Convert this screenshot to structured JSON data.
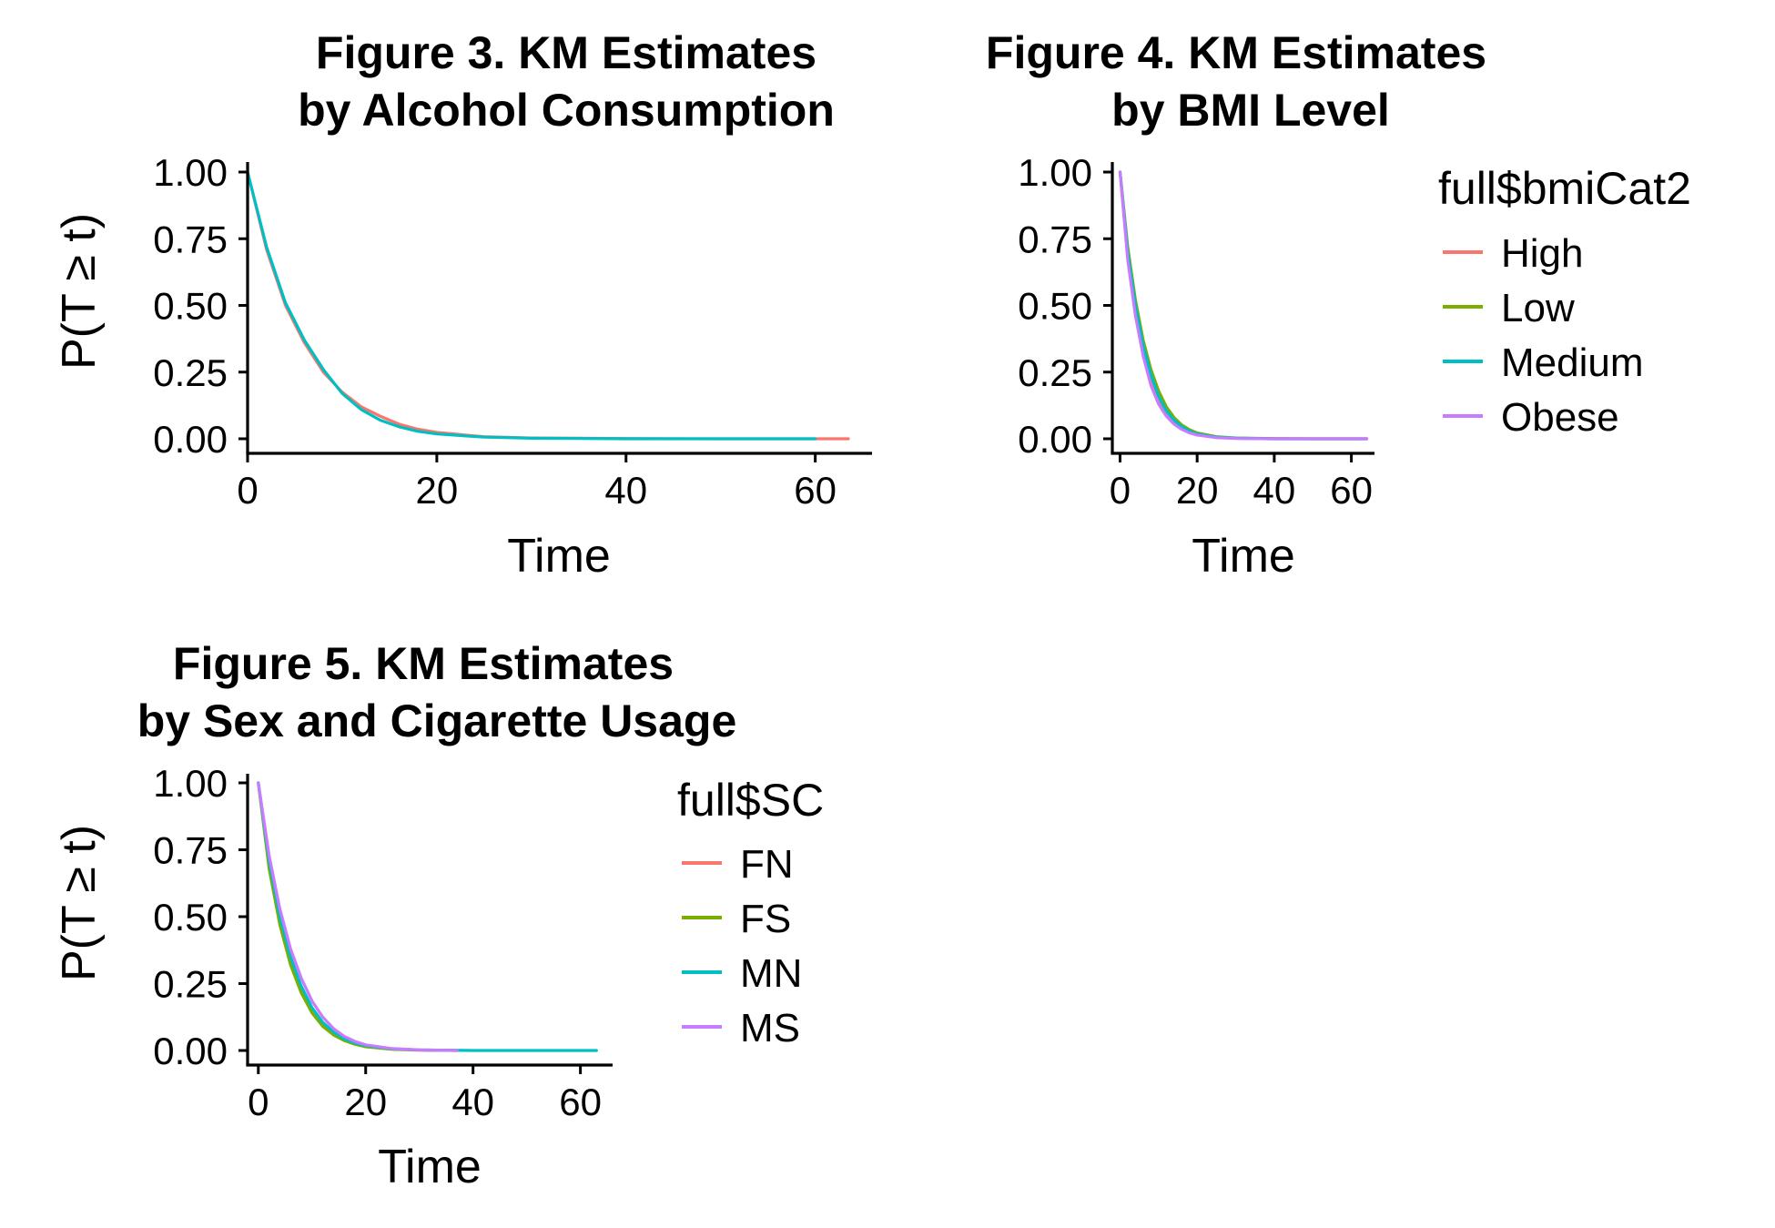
{
  "chart_data": [
    {
      "type": "line",
      "title_line1": "Figure 3. KM Estimates",
      "title_line2": "by Alcohol Consumption",
      "xlabel": "Time",
      "ylabel": "P(T ≥ t)",
      "xlim": [
        0,
        66
      ],
      "ylim": [
        0,
        1
      ],
      "xticks": [
        "0",
        "20",
        "40",
        "60"
      ],
      "xtick_values": [
        0,
        20,
        40,
        60
      ],
      "yticks": [
        "0.00",
        "0.25",
        "0.50",
        "0.75",
        "1.00"
      ],
      "ytick_values": [
        0,
        0.25,
        0.5,
        0.75,
        1.0
      ],
      "legend_title": "",
      "series": [
        {
          "color": "#F8766D",
          "x": [
            0,
            2,
            4,
            6,
            8,
            10,
            12,
            14,
            16,
            18,
            20,
            25,
            30,
            40,
            50,
            60,
            63.5
          ],
          "y": [
            1.0,
            0.71,
            0.5,
            0.36,
            0.25,
            0.175,
            0.12,
            0.085,
            0.055,
            0.036,
            0.024,
            0.008,
            0.003,
            0.001,
            0.0,
            0.0,
            0.0
          ]
        },
        {
          "color": "#00BFC4",
          "x": [
            0,
            2,
            4,
            6,
            8,
            10,
            12,
            14,
            16,
            18,
            20,
            25,
            30,
            40,
            50,
            60
          ],
          "y": [
            1.0,
            0.72,
            0.51,
            0.37,
            0.26,
            0.17,
            0.11,
            0.07,
            0.045,
            0.028,
            0.018,
            0.006,
            0.002,
            0.0,
            0.0,
            0.0
          ]
        }
      ]
    },
    {
      "type": "line",
      "title_line1": "Figure 4. KM Estimates",
      "title_line2": "by BMI Level",
      "xlabel": "Time",
      "ylabel": "",
      "xlim": [
        -2,
        66
      ],
      "ylim": [
        0,
        1
      ],
      "xticks": [
        "0",
        "20",
        "40",
        "60"
      ],
      "xtick_values": [
        0,
        20,
        40,
        60
      ],
      "yticks": [
        "0.00",
        "0.25",
        "0.50",
        "0.75",
        "1.00"
      ],
      "ytick_values": [
        0,
        0.25,
        0.5,
        0.75,
        1.0
      ],
      "legend_title": "full$bmiCat2",
      "series": [
        {
          "name": "High",
          "color": "#F8766D",
          "x": [
            0,
            2,
            4,
            6,
            8,
            10,
            12,
            14,
            16,
            18,
            20,
            25,
            30,
            40,
            50,
            60,
            64
          ],
          "y": [
            1.0,
            0.69,
            0.48,
            0.33,
            0.22,
            0.145,
            0.095,
            0.062,
            0.04,
            0.026,
            0.016,
            0.005,
            0.002,
            0.0,
            0.0,
            0.0,
            0.0
          ]
        },
        {
          "name": "Low",
          "color": "#7CAE00",
          "x": [
            0,
            2,
            4,
            6,
            8,
            10,
            12,
            14,
            16,
            18,
            20,
            25,
            30,
            40,
            50,
            60,
            64
          ],
          "y": [
            1.0,
            0.72,
            0.52,
            0.37,
            0.26,
            0.18,
            0.12,
            0.08,
            0.052,
            0.034,
            0.022,
            0.008,
            0.003,
            0.001,
            0.0,
            0.0,
            0.0
          ]
        },
        {
          "name": "Medium",
          "color": "#00BFC4",
          "x": [
            0,
            2,
            4,
            6,
            8,
            10,
            12,
            14,
            16,
            18,
            20,
            25,
            30,
            40,
            50,
            60,
            64
          ],
          "y": [
            1.0,
            0.7,
            0.5,
            0.35,
            0.24,
            0.16,
            0.105,
            0.07,
            0.045,
            0.029,
            0.018,
            0.006,
            0.002,
            0.0,
            0.0,
            0.0,
            0.0
          ]
        },
        {
          "name": "Obese",
          "color": "#C77CFF",
          "x": [
            0,
            2,
            4,
            6,
            8,
            10,
            12,
            14,
            16,
            18,
            20,
            25,
            30,
            40,
            50,
            60,
            64
          ],
          "y": [
            1.0,
            0.67,
            0.46,
            0.31,
            0.2,
            0.13,
            0.085,
            0.055,
            0.035,
            0.022,
            0.014,
            0.004,
            0.001,
            0.0,
            0.0,
            0.0,
            0.0
          ]
        }
      ]
    },
    {
      "type": "line",
      "title_line1": "Figure 5. KM Estimates",
      "title_line2": "by Sex and Cigarette Usage",
      "xlabel": "Time",
      "ylabel": "P(T ≥ t)",
      "xlim": [
        -2,
        66
      ],
      "ylim": [
        0,
        1
      ],
      "xticks": [
        "0",
        "20",
        "40",
        "60"
      ],
      "xtick_values": [
        0,
        20,
        40,
        60
      ],
      "yticks": [
        "0.00",
        "0.25",
        "0.50",
        "0.75",
        "1.00"
      ],
      "ytick_values": [
        0,
        0.25,
        0.5,
        0.75,
        1.0
      ],
      "legend_title": "full$SC",
      "series": [
        {
          "name": "FN",
          "color": "#F8766D",
          "x": [
            0,
            2,
            4,
            6,
            8,
            10,
            12,
            14,
            16,
            18,
            20,
            25,
            30,
            37
          ],
          "y": [
            1.0,
            0.7,
            0.49,
            0.34,
            0.23,
            0.155,
            0.1,
            0.066,
            0.042,
            0.027,
            0.017,
            0.006,
            0.002,
            0.0
          ]
        },
        {
          "name": "FS",
          "color": "#7CAE00",
          "x": [
            0,
            2,
            4,
            6,
            8,
            10,
            12,
            14,
            16,
            18,
            20,
            25,
            30,
            37
          ],
          "y": [
            1.0,
            0.68,
            0.47,
            0.32,
            0.215,
            0.14,
            0.09,
            0.058,
            0.037,
            0.023,
            0.014,
            0.004,
            0.001,
            0.0
          ]
        },
        {
          "name": "MN",
          "color": "#00BFC4",
          "x": [
            0,
            2,
            4,
            6,
            8,
            10,
            12,
            14,
            16,
            18,
            20,
            25,
            30,
            40,
            50,
            63
          ],
          "y": [
            1.0,
            0.71,
            0.5,
            0.35,
            0.24,
            0.16,
            0.105,
            0.069,
            0.044,
            0.028,
            0.018,
            0.006,
            0.002,
            0.0,
            0.0,
            0.0
          ]
        },
        {
          "name": "MS",
          "color": "#C77CFF",
          "x": [
            0,
            2,
            4,
            6,
            8,
            10,
            12,
            14,
            16,
            18,
            20,
            25,
            30,
            37
          ],
          "y": [
            1.0,
            0.73,
            0.53,
            0.38,
            0.27,
            0.185,
            0.125,
            0.082,
            0.053,
            0.034,
            0.021,
            0.007,
            0.002,
            0.0
          ]
        }
      ]
    }
  ]
}
